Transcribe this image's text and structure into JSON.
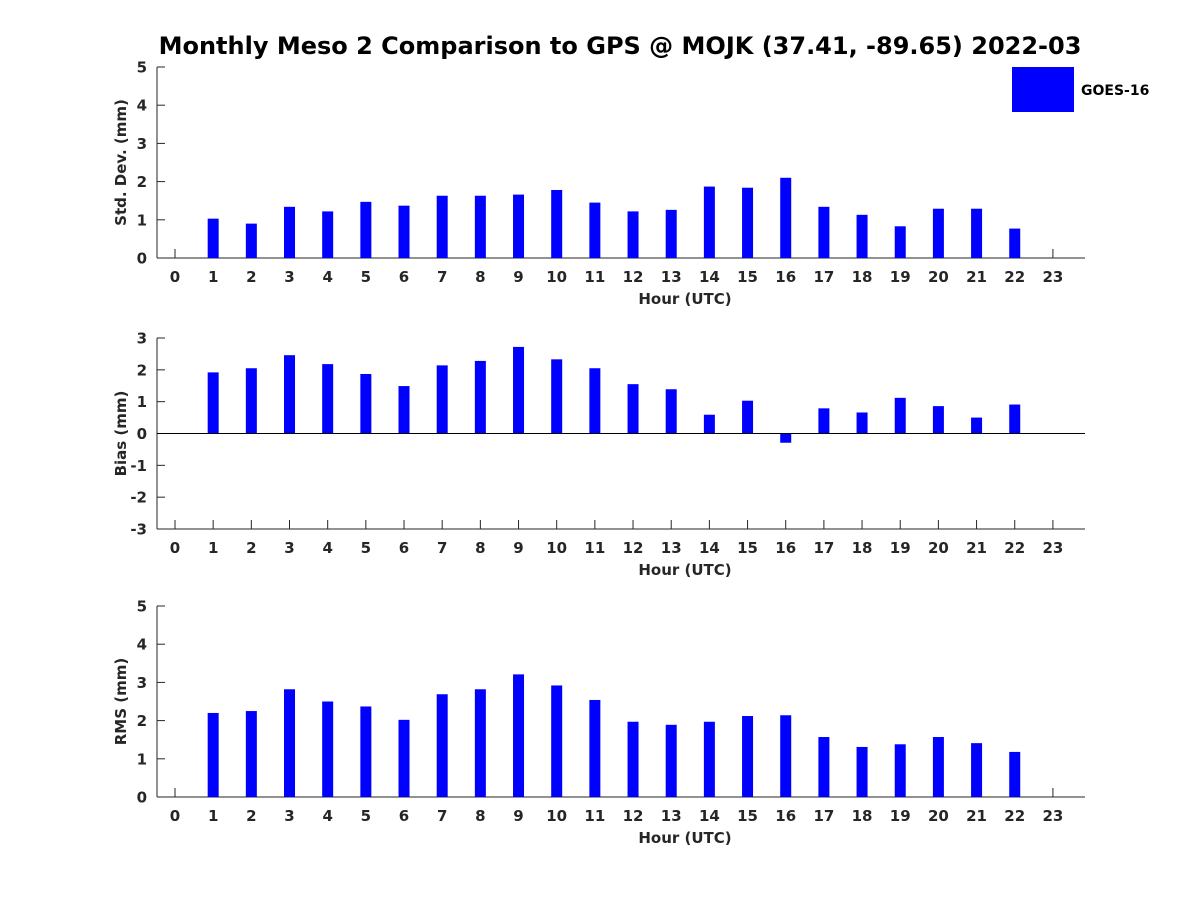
{
  "title": "Monthly Meso 2 Comparison to GPS @ MOJK (37.41, -89.65) 2022-03",
  "legend": {
    "label": "GOES-16",
    "color": "#0000ff",
    "placement": "top-right"
  },
  "chart_data": [
    {
      "type": "bar",
      "xlabel": "Hour (UTC)",
      "ylabel": "Std. Dev. (mm)",
      "ylim": [
        0,
        5
      ],
      "yticks": [
        0,
        1,
        2,
        3,
        4,
        5
      ],
      "x": [
        0,
        1,
        2,
        3,
        4,
        5,
        6,
        7,
        8,
        9,
        10,
        11,
        12,
        13,
        14,
        15,
        16,
        17,
        18,
        19,
        20,
        21,
        22,
        23
      ],
      "series": [
        {
          "name": "GOES-16",
          "values": [
            null,
            1.03,
            0.9,
            1.34,
            1.22,
            1.47,
            1.37,
            1.63,
            1.63,
            1.66,
            1.78,
            1.45,
            1.22,
            1.26,
            1.87,
            1.84,
            2.1,
            1.34,
            1.13,
            0.83,
            1.29,
            1.29,
            0.77,
            null
          ]
        }
      ]
    },
    {
      "type": "bar",
      "xlabel": "Hour (UTC)",
      "ylabel": "Bias (mm)",
      "ylim": [
        -3,
        3
      ],
      "yticks": [
        -3,
        -2,
        -1,
        0,
        1,
        2,
        3
      ],
      "x": [
        0,
        1,
        2,
        3,
        4,
        5,
        6,
        7,
        8,
        9,
        10,
        11,
        12,
        13,
        14,
        15,
        16,
        17,
        18,
        19,
        20,
        21,
        22,
        23
      ],
      "series": [
        {
          "name": "GOES-16",
          "values": [
            null,
            1.92,
            2.05,
            2.46,
            2.18,
            1.87,
            1.49,
            2.14,
            2.28,
            2.72,
            2.33,
            2.05,
            1.55,
            1.39,
            0.59,
            1.03,
            -0.29,
            0.79,
            0.66,
            1.12,
            0.86,
            0.5,
            0.91,
            null
          ]
        }
      ]
    },
    {
      "type": "bar",
      "xlabel": "Hour (UTC)",
      "ylabel": "RMS (mm)",
      "ylim": [
        0,
        5
      ],
      "yticks": [
        0,
        1,
        2,
        3,
        4,
        5
      ],
      "x": [
        0,
        1,
        2,
        3,
        4,
        5,
        6,
        7,
        8,
        9,
        10,
        11,
        12,
        13,
        14,
        15,
        16,
        17,
        18,
        19,
        20,
        21,
        22,
        23
      ],
      "series": [
        {
          "name": "GOES-16",
          "values": [
            null,
            2.2,
            2.25,
            2.82,
            2.5,
            2.37,
            2.02,
            2.69,
            2.82,
            3.21,
            2.92,
            2.54,
            1.97,
            1.89,
            1.97,
            2.12,
            2.14,
            1.57,
            1.31,
            1.38,
            1.57,
            1.41,
            1.18,
            null
          ]
        }
      ]
    }
  ]
}
